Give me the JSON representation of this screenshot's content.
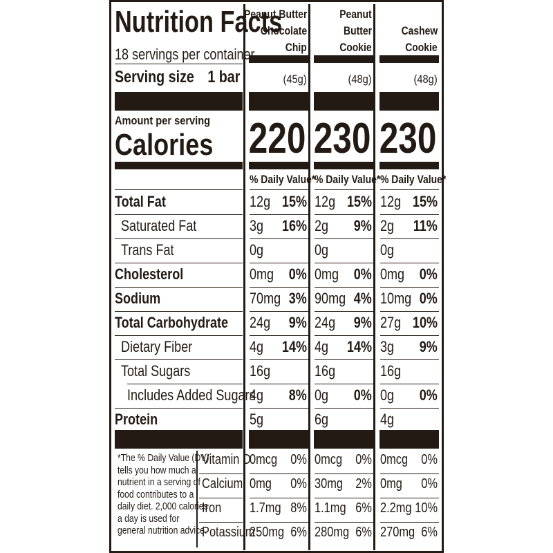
{
  "label": {
    "title": "Nutrition Facts",
    "servings": "18 servings per container",
    "serving_size_label": "Serving size",
    "serving_size_value": "1 bar",
    "amount_per_serving": "Amount per serving",
    "calories_label": "Calories",
    "dv_header": "% Daily Value*"
  },
  "columns": [
    {
      "name_lines": [
        "Peanut Butter",
        "Chocolate",
        "Chip"
      ],
      "weight": "(45g)",
      "calories": "220"
    },
    {
      "name_lines": [
        "Peanut",
        "Butter",
        "Cookie"
      ],
      "weight": "(48g)",
      "calories": "230"
    },
    {
      "name_lines": [
        "Cashew",
        "Cookie"
      ],
      "weight": "(48g)",
      "calories": "230"
    }
  ],
  "nutrients": [
    {
      "label": "Total Fat",
      "bold": true,
      "values": [
        [
          "12g",
          "15%"
        ],
        [
          "12g",
          "15%"
        ],
        [
          "12g",
          "15%"
        ]
      ]
    },
    {
      "label": "Saturated Fat",
      "bold": false,
      "values": [
        [
          "3g",
          "16%"
        ],
        [
          "2g",
          "9%"
        ],
        [
          "2g",
          "11%"
        ]
      ]
    },
    {
      "label": "Trans Fat",
      "bold": false,
      "values": [
        [
          "0g",
          ""
        ],
        [
          "0g",
          ""
        ],
        [
          "0g",
          ""
        ]
      ]
    },
    {
      "label": "Cholesterol",
      "bold": true,
      "values": [
        [
          "0mg",
          "0%"
        ],
        [
          "0mg",
          "0%"
        ],
        [
          "0mg",
          "0%"
        ]
      ]
    },
    {
      "label": "Sodium",
      "bold": true,
      "values": [
        [
          "70mg",
          "3%"
        ],
        [
          "90mg",
          "4%"
        ],
        [
          "10mg",
          "0%"
        ]
      ]
    },
    {
      "label": "Total Carbohydrate",
      "bold": true,
      "values": [
        [
          "24g",
          "9%"
        ],
        [
          "24g",
          "9%"
        ],
        [
          "27g",
          "10%"
        ]
      ]
    },
    {
      "label": "Dietary Fiber",
      "bold": false,
      "values": [
        [
          "4g",
          "14%"
        ],
        [
          "4g",
          "14%"
        ],
        [
          "3g",
          "9%"
        ]
      ]
    },
    {
      "label": "Total Sugars",
      "bold": false,
      "values": [
        [
          "16g",
          ""
        ],
        [
          "16g",
          ""
        ],
        [
          "16g",
          ""
        ]
      ]
    },
    {
      "label": "Includes Added Sugars",
      "bold": false,
      "values": [
        [
          "4g",
          "8%"
        ],
        [
          "0g",
          "0%"
        ],
        [
          "0g",
          "0%"
        ]
      ]
    },
    {
      "label": "Protein",
      "bold": true,
      "values": [
        [
          "5g",
          ""
        ],
        [
          "6g",
          ""
        ],
        [
          "4g",
          ""
        ]
      ]
    }
  ],
  "footnote_lines": [
    "*The % Daily Value (DV)",
    "tells you how much a",
    "nutrient in a serving of",
    "food contributes to a",
    "daily diet. 2,000 calories",
    "a day is used for",
    "general nutrition advice."
  ],
  "vitamins": [
    {
      "label": "Vitamin D",
      "values": [
        [
          "0mcg",
          "0%"
        ],
        [
          "0mcg",
          "0%"
        ],
        [
          "0mcg",
          "0%"
        ]
      ]
    },
    {
      "label": "Calcium",
      "values": [
        [
          "0mg",
          "0%"
        ],
        [
          "30mg",
          "2%"
        ],
        [
          "0mg",
          "0%"
        ]
      ]
    },
    {
      "label": "Iron",
      "values": [
        [
          "1.7mg",
          "8%"
        ],
        [
          "1.1mg",
          "6%"
        ],
        [
          "2.2mg",
          "10%"
        ]
      ]
    },
    {
      "label": "Potassium",
      "values": [
        [
          "250mg",
          "6%"
        ],
        [
          "280mg",
          "6%"
        ],
        [
          "270mg",
          "6%"
        ]
      ]
    }
  ]
}
